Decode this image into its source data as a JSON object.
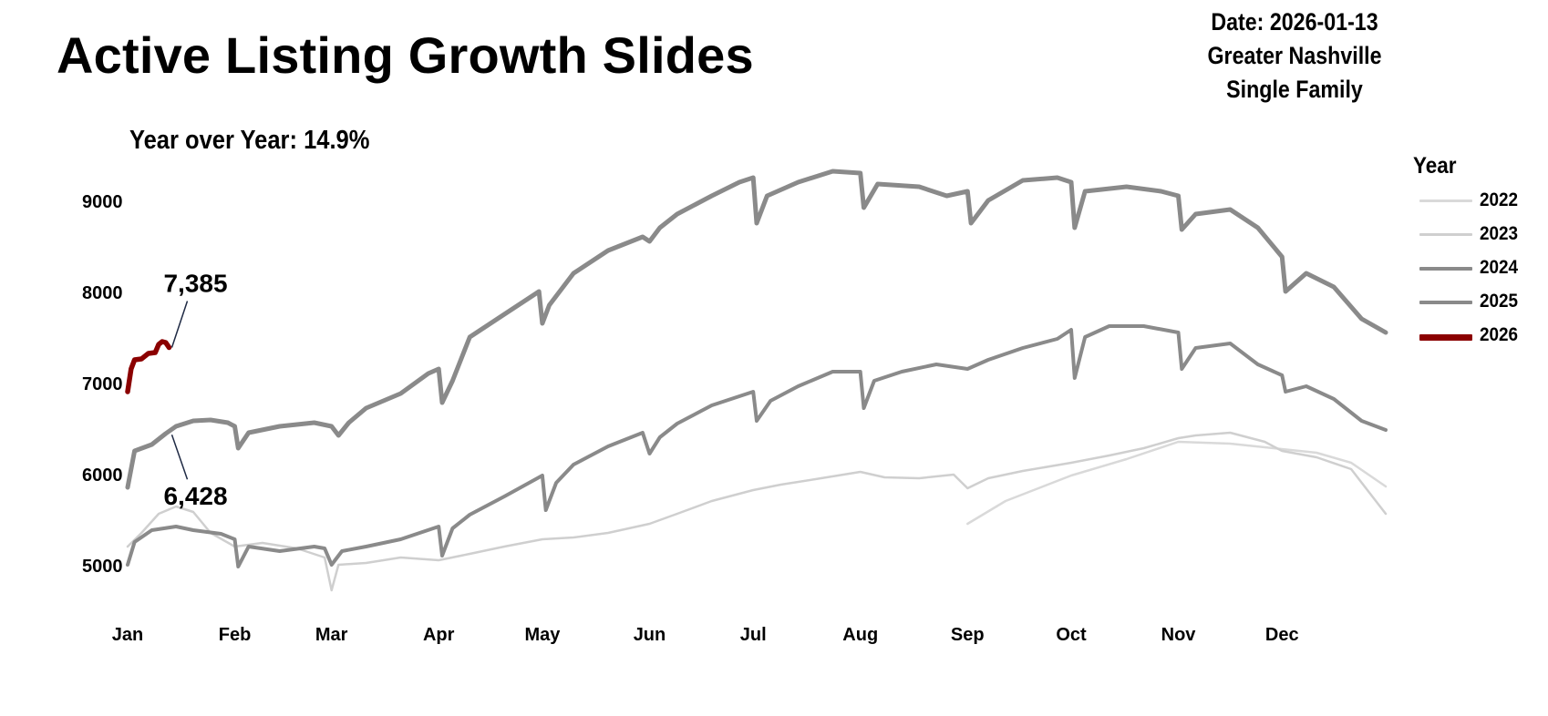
{
  "header": {
    "title": "Active Listing Growth Slides",
    "date_line": "Date: 2026-01-13",
    "region_line": "Greater Nashville",
    "type_line": "Single Family"
  },
  "yoy_label": "Year over Year: 14.9%",
  "chart_data": {
    "type": "line",
    "title": "Active Listing Growth Slides",
    "xlabel": "",
    "ylabel": "",
    "x_unit": "day of year",
    "xlim": [
      1,
      365
    ],
    "ylim": [
      4700,
      9550
    ],
    "yticks": [
      5000,
      6000,
      7000,
      8000,
      9000
    ],
    "xticks": [
      {
        "label": "Jan",
        "day": 1
      },
      {
        "label": "Feb",
        "day": 32
      },
      {
        "label": "Mar",
        "day": 60
      },
      {
        "label": "Apr",
        "day": 91
      },
      {
        "label": "May",
        "day": 121
      },
      {
        "label": "Jun",
        "day": 152
      },
      {
        "label": "Jul",
        "day": 182
      },
      {
        "label": "Aug",
        "day": 213
      },
      {
        "label": "Sep",
        "day": 244
      },
      {
        "label": "Oct",
        "day": 274
      },
      {
        "label": "Nov",
        "day": 305
      },
      {
        "label": "Dec",
        "day": 335
      }
    ],
    "grid": false,
    "legend": {
      "title": "Year",
      "position": "right"
    },
    "series": [
      {
        "name": "2022",
        "color": "#d9d9d9",
        "width": 2.5,
        "points": [
          [
            244,
            5450
          ],
          [
            255,
            5700
          ],
          [
            274,
            5980
          ],
          [
            290,
            6160
          ],
          [
            305,
            6350
          ],
          [
            320,
            6330
          ],
          [
            335,
            6270
          ],
          [
            345,
            6230
          ],
          [
            355,
            6120
          ],
          [
            365,
            5860
          ]
        ]
      },
      {
        "name": "2023",
        "color": "#cfcfcf",
        "width": 2.5,
        "points": [
          [
            1,
            5200
          ],
          [
            5,
            5350
          ],
          [
            10,
            5560
          ],
          [
            15,
            5640
          ],
          [
            20,
            5580
          ],
          [
            25,
            5350
          ],
          [
            32,
            5200
          ],
          [
            40,
            5240
          ],
          [
            50,
            5180
          ],
          [
            58,
            5080
          ],
          [
            60,
            4720
          ],
          [
            62,
            5000
          ],
          [
            70,
            5020
          ],
          [
            80,
            5080
          ],
          [
            91,
            5050
          ],
          [
            100,
            5120
          ],
          [
            110,
            5200
          ],
          [
            121,
            5280
          ],
          [
            130,
            5300
          ],
          [
            140,
            5350
          ],
          [
            152,
            5450
          ],
          [
            160,
            5560
          ],
          [
            170,
            5700
          ],
          [
            182,
            5820
          ],
          [
            190,
            5880
          ],
          [
            200,
            5940
          ],
          [
            213,
            6020
          ],
          [
            220,
            5960
          ],
          [
            230,
            5950
          ],
          [
            240,
            5990
          ],
          [
            244,
            5840
          ],
          [
            250,
            5950
          ],
          [
            260,
            6030
          ],
          [
            274,
            6120
          ],
          [
            285,
            6200
          ],
          [
            295,
            6280
          ],
          [
            305,
            6390
          ],
          [
            310,
            6420
          ],
          [
            320,
            6450
          ],
          [
            330,
            6350
          ],
          [
            335,
            6250
          ],
          [
            345,
            6180
          ],
          [
            355,
            6050
          ],
          [
            365,
            5560
          ]
        ]
      },
      {
        "name": "2024",
        "color": "#8a8a8a",
        "width": 4,
        "points": [
          [
            1,
            5000
          ],
          [
            3,
            5250
          ],
          [
            8,
            5380
          ],
          [
            15,
            5420
          ],
          [
            20,
            5380
          ],
          [
            28,
            5340
          ],
          [
            32,
            5280
          ],
          [
            33,
            4980
          ],
          [
            36,
            5200
          ],
          [
            45,
            5150
          ],
          [
            55,
            5200
          ],
          [
            58,
            5180
          ],
          [
            60,
            5000
          ],
          [
            63,
            5150
          ],
          [
            70,
            5200
          ],
          [
            80,
            5280
          ],
          [
            91,
            5420
          ],
          [
            92,
            5100
          ],
          [
            95,
            5400
          ],
          [
            100,
            5550
          ],
          [
            110,
            5750
          ],
          [
            121,
            5980
          ],
          [
            122,
            5600
          ],
          [
            125,
            5900
          ],
          [
            130,
            6100
          ],
          [
            140,
            6300
          ],
          [
            150,
            6450
          ],
          [
            152,
            6220
          ],
          [
            155,
            6400
          ],
          [
            160,
            6550
          ],
          [
            170,
            6750
          ],
          [
            182,
            6900
          ],
          [
            183,
            6580
          ],
          [
            187,
            6800
          ],
          [
            195,
            6960
          ],
          [
            205,
            7120
          ],
          [
            213,
            7120
          ],
          [
            214,
            6720
          ],
          [
            217,
            7020
          ],
          [
            225,
            7120
          ],
          [
            235,
            7200
          ],
          [
            244,
            7150
          ],
          [
            250,
            7250
          ],
          [
            260,
            7380
          ],
          [
            270,
            7480
          ],
          [
            274,
            7580
          ],
          [
            275,
            7050
          ],
          [
            278,
            7500
          ],
          [
            285,
            7620
          ],
          [
            295,
            7620
          ],
          [
            305,
            7550
          ],
          [
            306,
            7150
          ],
          [
            310,
            7380
          ],
          [
            320,
            7430
          ],
          [
            328,
            7200
          ],
          [
            335,
            7080
          ],
          [
            336,
            6900
          ],
          [
            342,
            6960
          ],
          [
            350,
            6820
          ],
          [
            358,
            6580
          ],
          [
            365,
            6480
          ]
        ]
      },
      {
        "name": "2025",
        "color": "#8a8a8a",
        "width": 5,
        "points": [
          [
            1,
            5850
          ],
          [
            3,
            6250
          ],
          [
            8,
            6320
          ],
          [
            12,
            6440
          ],
          [
            15,
            6520
          ],
          [
            20,
            6580
          ],
          [
            25,
            6590
          ],
          [
            30,
            6560
          ],
          [
            32,
            6520
          ],
          [
            33,
            6280
          ],
          [
            36,
            6450
          ],
          [
            45,
            6520
          ],
          [
            55,
            6560
          ],
          [
            60,
            6520
          ],
          [
            62,
            6420
          ],
          [
            65,
            6560
          ],
          [
            70,
            6720
          ],
          [
            80,
            6880
          ],
          [
            88,
            7100
          ],
          [
            91,
            7150
          ],
          [
            92,
            6780
          ],
          [
            95,
            7020
          ],
          [
            100,
            7500
          ],
          [
            110,
            7750
          ],
          [
            120,
            8000
          ],
          [
            121,
            7650
          ],
          [
            123,
            7850
          ],
          [
            130,
            8200
          ],
          [
            140,
            8450
          ],
          [
            150,
            8600
          ],
          [
            152,
            8550
          ],
          [
            155,
            8700
          ],
          [
            160,
            8850
          ],
          [
            170,
            9050
          ],
          [
            178,
            9200
          ],
          [
            182,
            9250
          ],
          [
            183,
            8750
          ],
          [
            186,
            9050
          ],
          [
            195,
            9200
          ],
          [
            205,
            9320
          ],
          [
            213,
            9300
          ],
          [
            214,
            8920
          ],
          [
            218,
            9180
          ],
          [
            230,
            9150
          ],
          [
            238,
            9050
          ],
          [
            244,
            9100
          ],
          [
            245,
            8750
          ],
          [
            250,
            9000
          ],
          [
            260,
            9220
          ],
          [
            270,
            9250
          ],
          [
            274,
            9200
          ],
          [
            275,
            8700
          ],
          [
            278,
            9100
          ],
          [
            290,
            9150
          ],
          [
            300,
            9100
          ],
          [
            305,
            9050
          ],
          [
            306,
            8680
          ],
          [
            310,
            8850
          ],
          [
            320,
            8900
          ],
          [
            328,
            8700
          ],
          [
            335,
            8380
          ],
          [
            336,
            8000
          ],
          [
            342,
            8200
          ],
          [
            350,
            8050
          ],
          [
            358,
            7700
          ],
          [
            365,
            7550
          ]
        ]
      },
      {
        "name": "2026",
        "color": "#8b0000",
        "width": 5.5,
        "points": [
          [
            1,
            6900
          ],
          [
            2,
            7150
          ],
          [
            3,
            7250
          ],
          [
            5,
            7260
          ],
          [
            7,
            7320
          ],
          [
            9,
            7330
          ],
          [
            10,
            7420
          ],
          [
            11,
            7450
          ],
          [
            12,
            7440
          ],
          [
            13,
            7385
          ]
        ]
      }
    ],
    "annotations": [
      {
        "text": "7,385",
        "series": "2026",
        "day": 13,
        "value": 7385
      },
      {
        "text": "6,428",
        "series": "2025",
        "day": 13,
        "value": 6428
      }
    ]
  }
}
